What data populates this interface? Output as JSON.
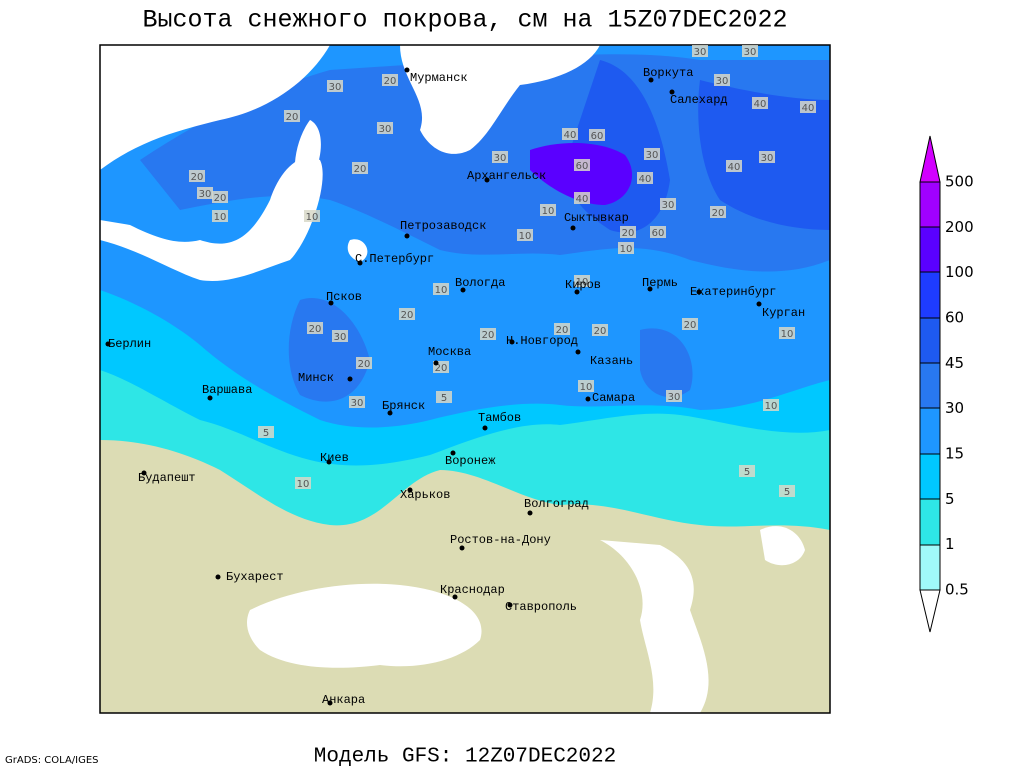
{
  "header": {
    "title": "Высота снежного покрова, см на 15Z07DEC2022"
  },
  "map": {
    "cities": [
      "Мурманск",
      "Воркута",
      "Салехард",
      "Архангельск",
      "Петрозаводск",
      "Сыктывкар",
      "С.Петербург",
      "Вологда",
      "Киров",
      "Пермь",
      "Екатеринбург",
      "Курган",
      "Псков",
      "Н.Новгород",
      "Москва",
      "Казань",
      "Берлин",
      "Минск",
      "Варшава",
      "Брянск",
      "Самара",
      "Тамбов",
      "Киев",
      "Воронеж",
      "Будапешт",
      "Харьков",
      "Волгоград",
      "Ростов-на-Дону",
      "Бухарест",
      "Краснодар",
      "Ставрополь",
      "Анкара"
    ],
    "contour_labels": [
      30,
      20,
      20,
      30,
      20,
      20,
      30,
      20,
      10,
      10,
      40,
      60,
      30,
      60,
      30,
      40,
      40,
      10,
      30,
      20,
      60,
      10,
      20,
      40,
      30,
      30,
      40,
      40,
      30,
      30,
      10,
      10,
      10,
      20,
      20,
      30,
      20,
      20,
      20,
      20,
      20,
      20,
      10,
      30,
      10,
      10,
      30,
      5,
      5,
      10,
      5,
      5
    ]
  },
  "colorbar": {
    "levels": [
      0.5,
      1,
      5,
      15,
      30,
      45,
      60,
      100,
      200,
      500
    ]
  },
  "footer": {
    "credit": "GrADS: COLA/IGES",
    "model": "Модель GFS: 12Z07DEC2022"
  }
}
